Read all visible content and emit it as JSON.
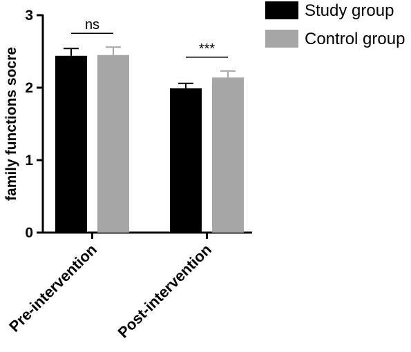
{
  "chart_data": {
    "type": "bar",
    "categories": [
      "Pre-intervention",
      "Post-intervention"
    ],
    "series": [
      {
        "name": "Study group",
        "values": [
          2.44,
          1.99
        ],
        "errors": [
          0.1,
          0.07
        ],
        "color": "#000000"
      },
      {
        "name": "Control group",
        "values": [
          2.45,
          2.14
        ],
        "errors": [
          0.11,
          0.09
        ],
        "color": "#a6a6a6"
      }
    ],
    "ylabel": "family functions socre",
    "xlabel": "",
    "ylim": [
      0,
      3
    ],
    "yticks": [
      "0",
      "1",
      "2",
      "3"
    ],
    "significance": [
      "ns",
      "***"
    ],
    "grid": false,
    "legend_position": "top-right"
  }
}
